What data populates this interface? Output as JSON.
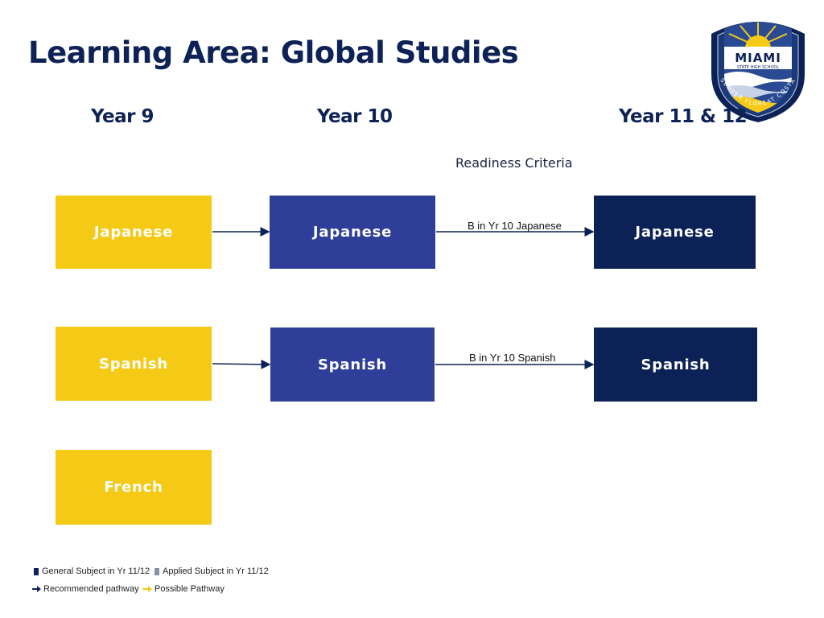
{
  "title": "Learning Area: Global Studies",
  "columns": {
    "year9": "Year 9",
    "year10": "Year 10",
    "year11_12": "Year 11 & 12"
  },
  "readiness_heading": "Readiness Criteria",
  "rows": [
    {
      "year9": "Japanese",
      "year10": "Japanese",
      "criteria": "B in Yr 10 Japanese",
      "year11_12": "Japanese"
    },
    {
      "year9": "Spanish",
      "year10": "Spanish",
      "criteria": "B in Yr 10 Spanish",
      "year11_12": "Spanish"
    },
    {
      "year9": "French"
    }
  ],
  "legend": {
    "general": "General Subject in Yr 11/12",
    "applied": "Applied Subject in Yr 11/12",
    "recommended": "Recommended pathway",
    "possible": "Possible Pathway"
  },
  "logo": {
    "name": "MIAMI",
    "subtitle": "STATE HIGH SCHOOL",
    "motto": "SEMPER FLOREAT COSTA"
  },
  "colors": {
    "navy": "#0c2257",
    "blue": "#2f3f99",
    "yellow": "#f5ca16",
    "grey": "#8a8fa3"
  }
}
